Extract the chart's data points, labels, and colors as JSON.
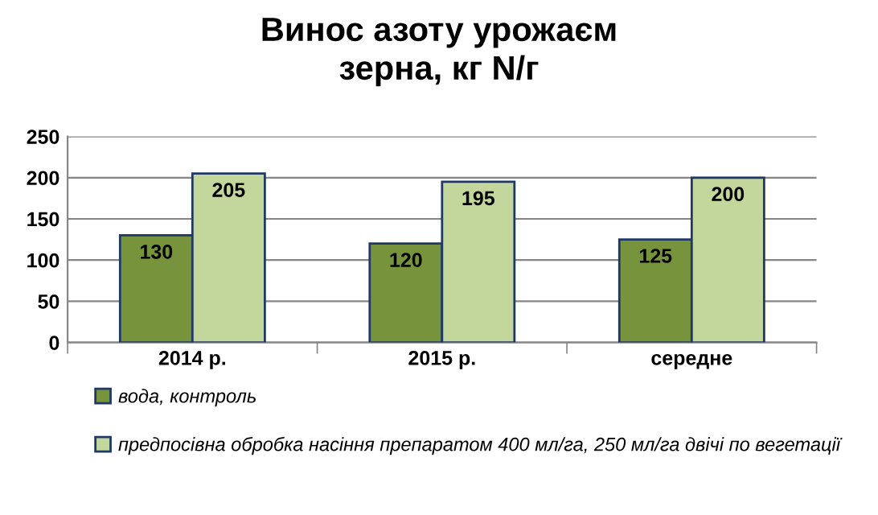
{
  "chart_data": {
    "type": "bar",
    "title": "Винос азоту урожаєм\nзерна, кг N/г",
    "categories": [
      "2014 р.",
      "2015 р.",
      "середне"
    ],
    "series": [
      {
        "name": "вода, контроль",
        "color": "#77933c",
        "values": [
          130,
          120,
          125
        ]
      },
      {
        "name": "предпосівна обробка насіння препаратом 400 мл/га, 250 мл/га двічі по вегетації",
        "color": "#c3d69b",
        "values": [
          205,
          195,
          200
        ]
      }
    ],
    "ylim": [
      0,
      250
    ],
    "yticks": [
      0,
      50,
      100,
      150,
      200,
      250
    ],
    "grid": "y",
    "legend": "bottom",
    "data_labels": true
  }
}
